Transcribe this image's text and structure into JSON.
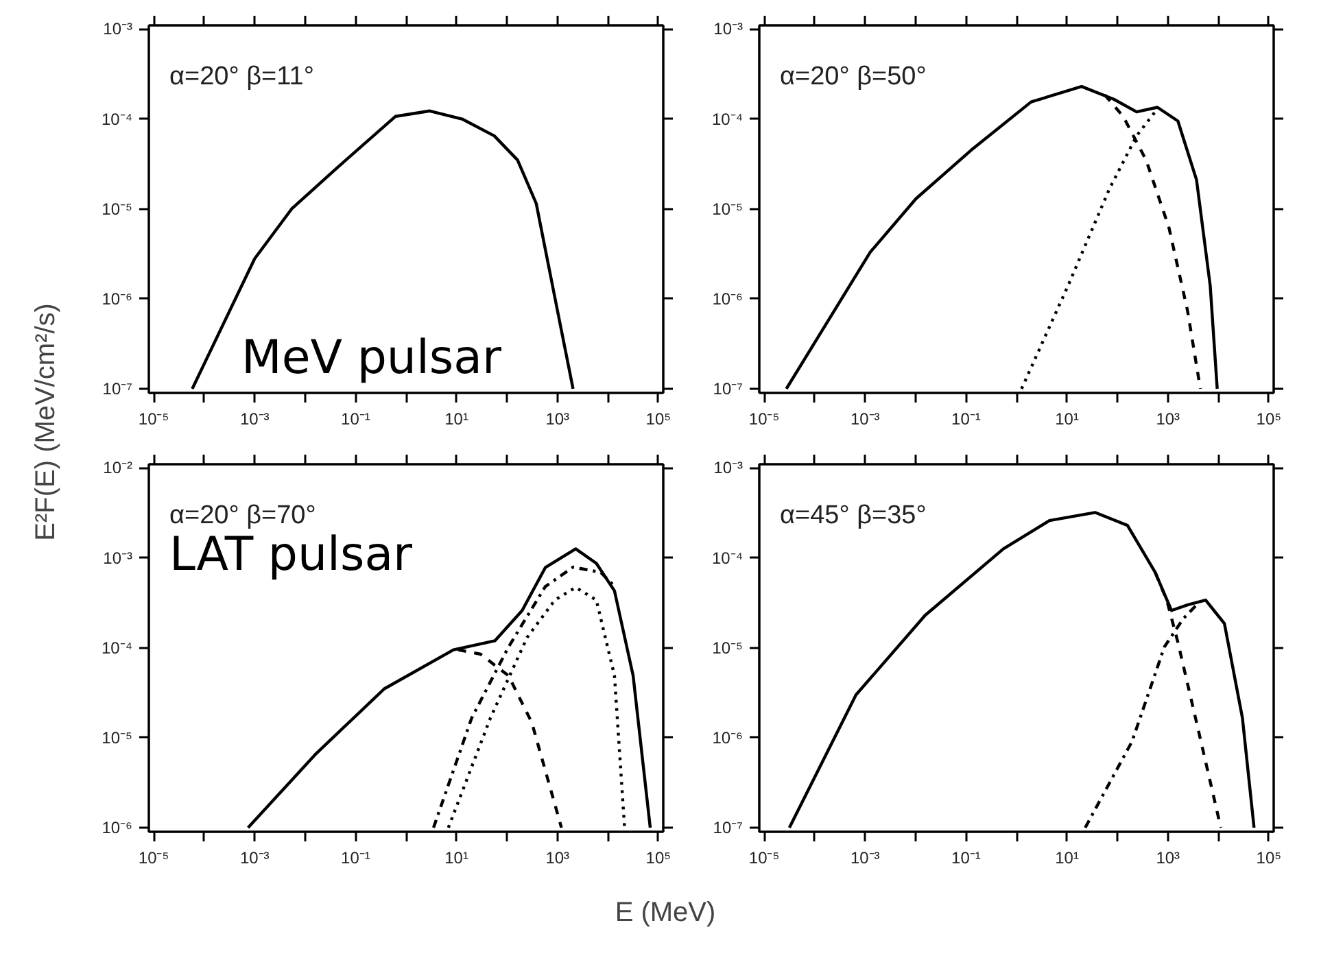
{
  "chart_data": [
    {
      "type": "line",
      "log": "xy",
      "ylabel": "E²F(E) (MeV/cm²/s)",
      "annotations": [
        "α=20°  β=11°",
        "MeV pulsar"
      ],
      "xlim": [
        8e-06,
        125000.0
      ],
      "ylim": [
        9e-08,
        0.0011
      ],
      "xticks": [
        {
          "value": 1e-05,
          "label": "10⁻⁵"
        },
        {
          "value": 0.0001,
          "label": null
        },
        {
          "value": 0.001,
          "label": "10⁻³"
        },
        {
          "value": 0.01,
          "label": null
        },
        {
          "value": 0.1,
          "label": "10⁻¹"
        },
        {
          "value": 1,
          "label": null
        },
        {
          "value": 10,
          "label": "10¹"
        },
        {
          "value": 100,
          "label": null
        },
        {
          "value": 1000,
          "label": "10³"
        },
        {
          "value": 10000,
          "label": null
        },
        {
          "value": 100000,
          "label": "10⁵"
        }
      ],
      "yticks": [
        {
          "value": 1e-07,
          "label": "10⁻⁷"
        },
        {
          "value": 1e-06,
          "label": "10⁻⁶"
        },
        {
          "value": 1e-05,
          "label": "10⁻⁵"
        },
        {
          "value": 0.0001,
          "label": "10⁻⁴"
        },
        {
          "value": 0.001,
          "label": "10⁻³"
        }
      ],
      "series": [
        {
          "color": "#000000",
          "line_style": "solid",
          "x": [
            5.8e-05,
            0.001,
            0.0054,
            0.044,
            0.62,
            2.95,
            12.9,
            56,
            162,
            380,
            870,
            2040
          ],
          "values": [
            1e-07,
            2.8e-06,
            1e-05,
            2.9e-05,
            0.000107,
            0.000123,
            0.0001,
            6.5e-05,
            3.5e-05,
            1.15e-05,
            1.1e-06,
            1e-07
          ]
        }
      ]
    },
    {
      "type": "line",
      "log": "xy",
      "annotations": [
        "α=20°  β=50°"
      ],
      "xlim": [
        8e-06,
        125000.0
      ],
      "ylim": [
        9e-08,
        0.0011
      ],
      "xticks": [
        {
          "value": 1e-05,
          "label": "10⁻⁵"
        },
        {
          "value": 0.0001,
          "label": null
        },
        {
          "value": 0.001,
          "label": "10⁻³"
        },
        {
          "value": 0.01,
          "label": null
        },
        {
          "value": 0.1,
          "label": "10⁻¹"
        },
        {
          "value": 1,
          "label": null
        },
        {
          "value": 10,
          "label": "10¹"
        },
        {
          "value": 100,
          "label": null
        },
        {
          "value": 1000,
          "label": "10³"
        },
        {
          "value": 10000,
          "label": null
        },
        {
          "value": 100000,
          "label": "10⁵"
        }
      ],
      "yticks": [
        {
          "value": 1e-07,
          "label": "10⁻⁷"
        },
        {
          "value": 1e-06,
          "label": "10⁻⁶"
        },
        {
          "value": 1e-05,
          "label": "10⁻⁵"
        },
        {
          "value": 0.0001,
          "label": "10⁻⁴"
        },
        {
          "value": 0.001,
          "label": "10⁻³"
        }
      ],
      "series": [
        {
          "color": "#000000",
          "line_style": "solid",
          "x": [
            2.75e-05,
            0.00126,
            0.0102,
            0.126,
            1.95,
            19.5,
            85,
            240,
            620,
            1580,
            3700,
            6900,
            9500
          ],
          "values": [
            1e-07,
            3.3e-06,
            1.3e-05,
            4.5e-05,
            0.000155,
            0.00023,
            0.000166,
            0.00012,
            0.000135,
            9.5e-05,
            2.1e-05,
            1.4e-06,
            1e-07
          ]
        },
        {
          "color": "#000000",
          "line_style": "dashed",
          "x": [
            56,
            130,
            370,
            1050,
            2450,
            4400
          ],
          "values": [
            0.000186,
            0.000107,
            3.5e-05,
            6.2e-06,
            7.4e-07,
            1e-07
          ]
        },
        {
          "color": "#000000",
          "line_style": "dotted",
          "x": [
            1.26,
            10.5,
            69,
            240,
            620
          ],
          "values": [
            1e-07,
            1.4e-06,
            1.66e-05,
            6.5e-05,
            0.00013
          ]
        }
      ]
    },
    {
      "type": "line",
      "log": "xy",
      "xlabel": "E (MeV)",
      "annotations": [
        "α=20°  β=70°",
        "LAT pulsar"
      ],
      "xlim": [
        8e-06,
        125000.0
      ],
      "ylim": [
        9e-07,
        0.011
      ],
      "xticks": [
        {
          "value": 1e-05,
          "label": "10⁻⁵"
        },
        {
          "value": 0.0001,
          "label": null
        },
        {
          "value": 0.001,
          "label": "10⁻³"
        },
        {
          "value": 0.01,
          "label": null
        },
        {
          "value": 0.1,
          "label": "10⁻¹"
        },
        {
          "value": 1,
          "label": null
        },
        {
          "value": 10,
          "label": "10¹"
        },
        {
          "value": 100,
          "label": null
        },
        {
          "value": 1000,
          "label": "10³"
        },
        {
          "value": 10000,
          "label": null
        },
        {
          "value": 100000,
          "label": "10⁵"
        }
      ],
      "yticks": [
        {
          "value": 1e-06,
          "label": "10⁻⁶"
        },
        {
          "value": 1e-05,
          "label": "10⁻⁵"
        },
        {
          "value": 0.0001,
          "label": "10⁻⁴"
        },
        {
          "value": 0.001,
          "label": "10⁻³"
        },
        {
          "value": 0.01,
          "label": "10⁻²"
        }
      ],
      "series": [
        {
          "color": "#000000",
          "line_style": "solid",
          "x": [
            0.00074,
            0.0158,
            0.37,
            8.7,
            58,
            200,
            575,
            2300,
            5900,
            13500,
            31600,
            69000
          ],
          "values": [
            1e-06,
            6.5e-06,
            3.5e-05,
            9.5e-05,
            0.00012,
            0.00026,
            0.00078,
            0.00126,
            0.00087,
            0.00043,
            4.9e-05,
            1e-06
          ]
        },
        {
          "color": "#000000",
          "line_style": "dashed",
          "x": [
            10.7,
            30,
            107,
            310,
            1200
          ],
          "values": [
            9.5e-05,
            8.5e-05,
            4.9e-05,
            1.48e-05,
            1e-06
          ]
        },
        {
          "color": "#000000",
          "line_style": "dashdot",
          "x": [
            3.5,
            20,
            107,
            575,
            2050,
            7200,
            12300
          ],
          "values": [
            1e-06,
            1.66e-05,
            0.000102,
            0.00048,
            0.00079,
            0.00069,
            0.00051
          ]
        },
        {
          "color": "#000000",
          "line_style": "dotted",
          "x": [
            6.9,
            47,
            250,
            890,
            2300,
            5900,
            13500,
            21400
          ],
          "values": [
            1e-06,
            1.66e-05,
            0.00013,
            0.00034,
            0.00047,
            0.00034,
            4.9e-05,
            1e-06
          ]
        }
      ]
    },
    {
      "type": "line",
      "log": "xy",
      "annotations": [
        "α=45°  β=35°"
      ],
      "xlim": [
        8e-06,
        125000.0
      ],
      "ylim": [
        9e-08,
        0.0011
      ],
      "xticks": [
        {
          "value": 1e-05,
          "label": "10⁻⁵"
        },
        {
          "value": 0.0001,
          "label": null
        },
        {
          "value": 0.001,
          "label": "10⁻³"
        },
        {
          "value": 0.01,
          "label": null
        },
        {
          "value": 0.1,
          "label": "10⁻¹"
        },
        {
          "value": 1,
          "label": null
        },
        {
          "value": 10,
          "label": "10¹"
        },
        {
          "value": 100,
          "label": null
        },
        {
          "value": 1000,
          "label": "10³"
        },
        {
          "value": 10000,
          "label": null
        },
        {
          "value": 100000,
          "label": "10⁵"
        }
      ],
      "yticks": [
        {
          "value": 1e-07,
          "label": "10⁻⁷"
        },
        {
          "value": 1e-06,
          "label": "10⁻⁶"
        },
        {
          "value": 1e-05,
          "label": "10⁻⁵"
        },
        {
          "value": 0.0001,
          "label": "10⁻⁴"
        },
        {
          "value": 0.001,
          "label": "10⁻³"
        }
      ],
      "series": [
        {
          "color": "#000000",
          "line_style": "solid",
          "x": [
            3.16e-05,
            0.00066,
            0.0155,
            0.55,
            4.5,
            36,
            158,
            560,
            1180,
            2450,
            5600,
            13200,
            30000,
            51000
          ],
          "values": [
            1e-07,
            3e-06,
            2.3e-05,
            0.000126,
            0.00026,
            0.00032,
            0.00023,
            6.9e-05,
            2.6e-05,
            3e-05,
            3.4e-05,
            1.86e-05,
            1.66e-06,
            1e-07
          ]
        },
        {
          "color": "#000000",
          "line_style": "dashed",
          "x": [
            560,
            950,
            1580,
            3700,
            11200
          ],
          "values": [
            6.9e-05,
            3.4e-05,
            1.15e-05,
            1.48e-06,
            1e-07
          ]
        },
        {
          "color": "#000000",
          "line_style": "dashdot",
          "x": [
            23,
            195,
            850,
            2000,
            3700
          ],
          "values": [
            1e-07,
            9.1e-07,
            1.02e-05,
            2.1e-05,
            3e-05
          ]
        }
      ]
    }
  ]
}
